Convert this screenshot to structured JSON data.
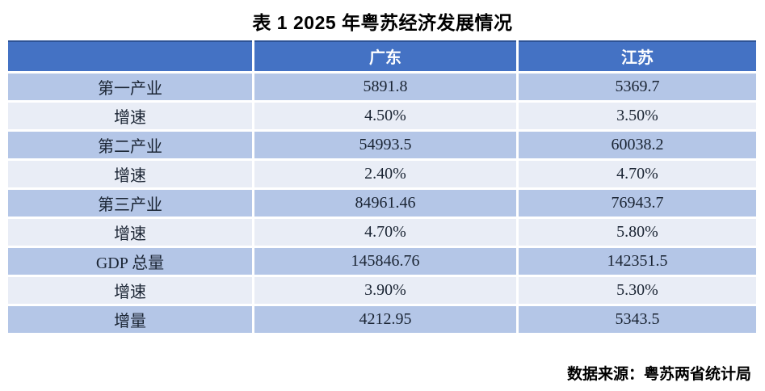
{
  "page": {
    "title": "表 1 2025 年粤苏经济发展情况",
    "source_note": "数据来源：粤苏两省统计局"
  },
  "colors": {
    "header_bg": "#4472C4",
    "header_top_border": "#2E5395",
    "band_dark": "#B4C6E7",
    "band_light": "#E9EDF6",
    "header_text": "#FFFFFF",
    "body_text": "#1A2433"
  },
  "chart_data": {
    "type": "table",
    "title": "表 1 2025 年粤苏经济发展情况",
    "columns": [
      "",
      "广东",
      "江苏"
    ],
    "rows": [
      {
        "label": "第一产业",
        "guangdong": "5891.8",
        "jiangsu": "5369.7"
      },
      {
        "label": "增速",
        "guangdong": "4.50%",
        "jiangsu": "3.50%"
      },
      {
        "label": "第二产业",
        "guangdong": "54993.5",
        "jiangsu": "60038.2"
      },
      {
        "label": "增速",
        "guangdong": "2.40%",
        "jiangsu": "4.70%"
      },
      {
        "label": "第三产业",
        "guangdong": "84961.46",
        "jiangsu": "76943.7"
      },
      {
        "label": "增速",
        "guangdong": "4.70%",
        "jiangsu": "5.80%"
      },
      {
        "label": "GDP 总量",
        "guangdong": "145846.76",
        "jiangsu": "142351.5"
      },
      {
        "label": "增速",
        "guangdong": "3.90%",
        "jiangsu": "5.30%"
      },
      {
        "label": "增量",
        "guangdong": "4212.95",
        "jiangsu": "5343.5"
      }
    ],
    "source": "数据来源：粤苏两省统计局"
  }
}
